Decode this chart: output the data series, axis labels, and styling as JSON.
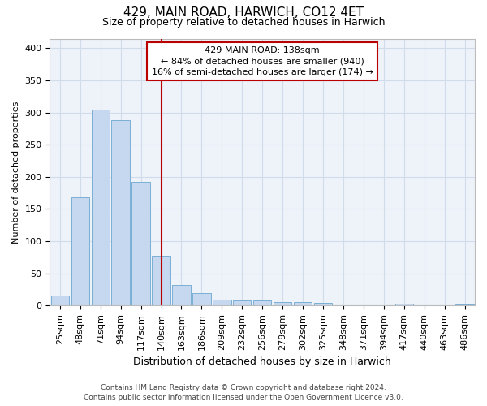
{
  "title": "429, MAIN ROAD, HARWICH, CO12 4ET",
  "subtitle": "Size of property relative to detached houses in Harwich",
  "xlabel": "Distribution of detached houses by size in Harwich",
  "ylabel": "Number of detached properties",
  "footer_line1": "Contains HM Land Registry data © Crown copyright and database right 2024.",
  "footer_line2": "Contains public sector information licensed under the Open Government Licence v3.0.",
  "categories": [
    "25sqm",
    "48sqm",
    "71sqm",
    "94sqm",
    "117sqm",
    "140sqm",
    "163sqm",
    "186sqm",
    "209sqm",
    "232sqm",
    "256sqm",
    "279sqm",
    "302sqm",
    "325sqm",
    "348sqm",
    "371sqm",
    "394sqm",
    "417sqm",
    "440sqm",
    "463sqm",
    "486sqm"
  ],
  "values": [
    16,
    168,
    305,
    288,
    192,
    78,
    32,
    19,
    9,
    8,
    8,
    5,
    5,
    4,
    0,
    0,
    0,
    3,
    0,
    0,
    2
  ],
  "bar_color": "#c5d8ef",
  "bar_edge_color": "#7aafd4",
  "grid_color": "#d0dcea",
  "background_color": "#ffffff",
  "plot_bg_color": "#eef2f9",
  "vline_x": 5.0,
  "vline_color": "#bb0000",
  "annotation_text": "429 MAIN ROAD: 138sqm\n← 84% of detached houses are smaller (940)\n16% of semi-detached houses are larger (174) →",
  "annotation_box_color": "#ffffff",
  "annotation_box_edge": "#bb0000",
  "ylim": [
    0,
    415
  ],
  "yticks": [
    0,
    50,
    100,
    150,
    200,
    250,
    300,
    350,
    400
  ],
  "title_fontsize": 11,
  "subtitle_fontsize": 9,
  "xlabel_fontsize": 9,
  "ylabel_fontsize": 8,
  "tick_fontsize": 8,
  "footer_fontsize": 6.5
}
